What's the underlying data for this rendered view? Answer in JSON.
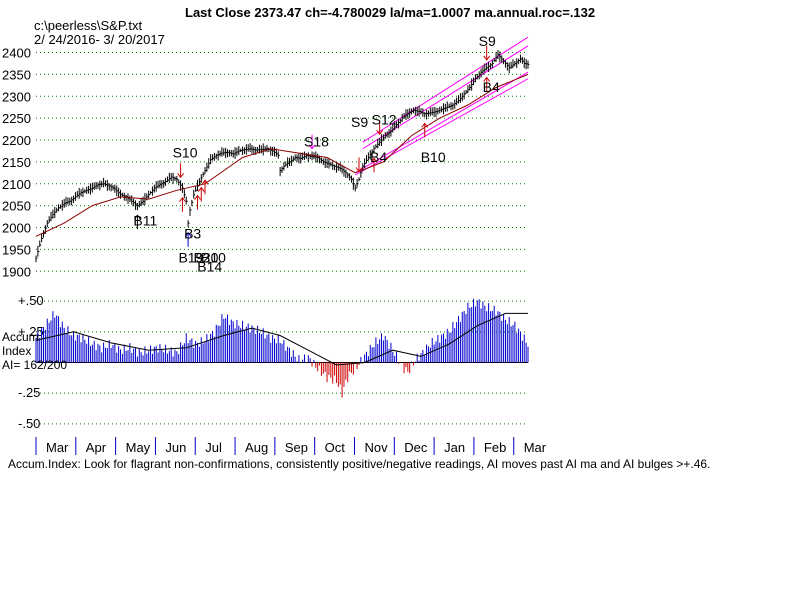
{
  "header": {
    "title": "Last Close 2373.47 ch=-4.780029  la/ma=1.0007 ma.annual.roc=.132",
    "file": "c:\\peerless\\S&P.txt",
    "range": "2/ 24/2016- 3/ 20/2017"
  },
  "accum_legend": {
    "line1": "Accum",
    "line2": "Index",
    "line3": "AI= 162/200"
  },
  "footer": "Accum.Index: Look for flagrant non-confirmations, consistently positive/negative readings, AI moves past AI ma and AI bulges >+.46.",
  "colors": {
    "bars": "#000000",
    "ma": "#8b0000",
    "channel": "#ff00ff",
    "accum_pos": "#0000cc",
    "accum_neg": "#cc0000",
    "signal_red": "#cc0000",
    "signal_blue": "#0000cc",
    "signal_magenta": "#ff00ff",
    "grid": "#008000"
  },
  "chart_data": [
    {
      "type": "bar",
      "subtype": "ohlc-price",
      "ylim": [
        1880,
        2440
      ],
      "yticks": [
        "2400",
        "2350",
        "2300",
        "2250",
        "2200",
        "2150",
        "2100",
        "2050",
        "2000",
        "1950",
        "1900"
      ],
      "x_months": [
        "Mar",
        "Apr",
        "May",
        "Jun",
        "Jul",
        "Aug",
        "Sep",
        "Oct",
        "Nov",
        "Dec",
        "Jan",
        "Feb",
        "Mar"
      ],
      "grid": true,
      "close_path": [
        [
          0,
          1930
        ],
        [
          3,
          1975
        ],
        [
          6,
          2010
        ],
        [
          9,
          2030
        ],
        [
          12,
          2045
        ],
        [
          15,
          2055
        ],
        [
          18,
          2060
        ],
        [
          21,
          2070
        ],
        [
          24,
          2080
        ],
        [
          27,
          2085
        ],
        [
          30,
          2090
        ],
        [
          33,
          2098
        ],
        [
          36,
          2100
        ],
        [
          39,
          2095
        ],
        [
          42,
          2088
        ],
        [
          45,
          2075
        ],
        [
          48,
          2070
        ],
        [
          51,
          2060
        ],
        [
          54,
          2050
        ],
        [
          57,
          2060
        ],
        [
          60,
          2075
        ],
        [
          63,
          2090
        ],
        [
          66,
          2098
        ],
        [
          69,
          2105
        ],
        [
          72,
          2115
        ],
        [
          75,
          2110
        ],
        [
          78,
          2090
        ],
        [
          80,
          2060
        ],
        [
          81,
          2010
        ],
        [
          82,
          2040
        ],
        [
          84,
          2075
        ],
        [
          87,
          2105
        ],
        [
          90,
          2130
        ],
        [
          93,
          2155
        ],
        [
          96,
          2165
        ],
        [
          99,
          2170
        ],
        [
          102,
          2172
        ],
        [
          105,
          2168
        ],
        [
          108,
          2175
        ],
        [
          111,
          2178
        ],
        [
          114,
          2180
        ],
        [
          117,
          2177
        ],
        [
          120,
          2178
        ],
        [
          123,
          2180
        ],
        [
          126,
          2175
        ],
        [
          129,
          2165
        ],
        [
          130,
          2130
        ],
        [
          132,
          2140
        ],
        [
          135,
          2150
        ],
        [
          138,
          2160
        ],
        [
          141,
          2158
        ],
        [
          144,
          2165
        ],
        [
          147,
          2162
        ],
        [
          150,
          2160
        ],
        [
          153,
          2150
        ],
        [
          156,
          2145
        ],
        [
          159,
          2140
        ],
        [
          162,
          2135
        ],
        [
          165,
          2125
        ],
        [
          168,
          2110
        ],
        [
          170,
          2090
        ],
        [
          172,
          2110
        ],
        [
          174,
          2140
        ],
        [
          177,
          2160
        ],
        [
          180,
          2180
        ],
        [
          183,
          2195
        ],
        [
          186,
          2210
        ],
        [
          189,
          2220
        ],
        [
          192,
          2235
        ],
        [
          195,
          2250
        ],
        [
          198,
          2260
        ],
        [
          201,
          2268
        ],
        [
          204,
          2265
        ],
        [
          207,
          2260
        ],
        [
          210,
          2262
        ],
        [
          213,
          2265
        ],
        [
          216,
          2270
        ],
        [
          219,
          2275
        ],
        [
          222,
          2280
        ],
        [
          225,
          2290
        ],
        [
          228,
          2305
        ],
        [
          231,
          2320
        ],
        [
          234,
          2340
        ],
        [
          237,
          2355
        ],
        [
          240,
          2365
        ],
        [
          243,
          2375
        ],
        [
          246,
          2395
        ],
        [
          249,
          2380
        ],
        [
          252,
          2365
        ],
        [
          255,
          2375
        ],
        [
          258,
          2385
        ],
        [
          260,
          2375
        ],
        [
          262,
          2373
        ]
      ],
      "ma_path": [
        [
          0,
          1980
        ],
        [
          15,
          2010
        ],
        [
          30,
          2050
        ],
        [
          45,
          2070
        ],
        [
          60,
          2065
        ],
        [
          75,
          2085
        ],
        [
          90,
          2100
        ],
        [
          100,
          2130
        ],
        [
          110,
          2160
        ],
        [
          125,
          2180
        ],
        [
          140,
          2170
        ],
        [
          155,
          2160
        ],
        [
          170,
          2125
        ],
        [
          185,
          2150
        ],
        [
          200,
          2210
        ],
        [
          215,
          2250
        ],
        [
          230,
          2280
        ],
        [
          245,
          2320
        ],
        [
          262,
          2350
        ]
      ],
      "signals": [
        {
          "label": "S9",
          "x": 240,
          "kind": "sell",
          "color": "red",
          "text_above": true,
          "y": 2415
        },
        {
          "label": "S10",
          "x": 77,
          "kind": "sell",
          "color": "red",
          "text_above": true,
          "y": 2160
        },
        {
          "label": "S18",
          "x": 147,
          "kind": "sell",
          "color": "magenta",
          "text_above": true,
          "y": 2185
        },
        {
          "label": "S9",
          "x": 172,
          "kind": "sell",
          "color": "red",
          "text_above": true,
          "y": 2230
        },
        {
          "label": "S12",
          "x": 183,
          "kind": "sell",
          "color": "red",
          "text_above": true,
          "y": 2235
        },
        {
          "label": "B4",
          "x": 240,
          "kind": "buy",
          "color": "red",
          "text_above": false,
          "y": 2310
        },
        {
          "label": "B10",
          "x": 207,
          "kind": "buy",
          "color": "red",
          "text_above": false,
          "y": 2150
        },
        {
          "label": "B4",
          "x": 180,
          "kind": "buy",
          "color": "red",
          "text_above": false,
          "y": 2150
        },
        {
          "label": "B11",
          "x": 54,
          "kind": "buy",
          "color": "black",
          "text_above": false,
          "y": 2005
        },
        {
          "label": "B3",
          "x": 81,
          "kind": "buy",
          "color": "blue",
          "text_above": false,
          "y": 1975
        },
        {
          "label": "B19",
          "x": 78,
          "kind": "buy",
          "color": "red",
          "text_above": false,
          "y": 1920
        },
        {
          "label": "B20",
          "x": 86,
          "kind": "buy",
          "color": "red",
          "text_above": false,
          "y": 1920
        },
        {
          "label": "B10",
          "x": 90,
          "kind": "buy",
          "color": "red",
          "text_above": false,
          "y": 1920
        },
        {
          "label": "B14",
          "x": 88,
          "kind": "buy",
          "color": "red",
          "text_above": false,
          "y": 1900
        }
      ]
    },
    {
      "type": "bar",
      "subtype": "accumulation-index",
      "ylim": [
        -0.55,
        0.55
      ],
      "yticks": [
        "+.50",
        "+.25",
        "-.25",
        "-.50"
      ],
      "grid": true,
      "accum_path": [
        [
          0,
          0.2
        ],
        [
          5,
          0.3
        ],
        [
          10,
          0.4
        ],
        [
          15,
          0.28
        ],
        [
          20,
          0.22
        ],
        [
          25,
          0.2
        ],
        [
          30,
          0.15
        ],
        [
          35,
          0.12
        ],
        [
          40,
          0.15
        ],
        [
          45,
          0.1
        ],
        [
          50,
          0.12
        ],
        [
          55,
          0.08
        ],
        [
          60,
          0.1
        ],
        [
          65,
          0.12
        ],
        [
          70,
          0.1
        ],
        [
          75,
          0.08
        ],
        [
          80,
          0.2
        ],
        [
          85,
          0.15
        ],
        [
          90,
          0.18
        ],
        [
          95,
          0.25
        ],
        [
          100,
          0.38
        ],
        [
          105,
          0.32
        ],
        [
          110,
          0.3
        ],
        [
          115,
          0.28
        ],
        [
          120,
          0.25
        ],
        [
          125,
          0.2
        ],
        [
          130,
          0.18
        ],
        [
          135,
          0.1
        ],
        [
          140,
          0.02
        ],
        [
          145,
          0.04
        ],
        [
          150,
          -0.05
        ],
        [
          155,
          -0.12
        ],
        [
          160,
          -0.15
        ],
        [
          163,
          -0.25
        ],
        [
          166,
          -0.12
        ],
        [
          170,
          -0.05
        ],
        [
          175,
          0.05
        ],
        [
          180,
          0.15
        ],
        [
          185,
          0.22
        ],
        [
          190,
          0.1
        ],
        [
          195,
          -0.03
        ],
        [
          198,
          -0.08
        ],
        [
          202,
          0.02
        ],
        [
          206,
          0.08
        ],
        [
          210,
          0.15
        ],
        [
          215,
          0.2
        ],
        [
          220,
          0.25
        ],
        [
          225,
          0.35
        ],
        [
          230,
          0.45
        ],
        [
          235,
          0.5
        ],
        [
          240,
          0.45
        ],
        [
          245,
          0.42
        ],
        [
          250,
          0.35
        ],
        [
          255,
          0.3
        ],
        [
          262,
          0.15
        ]
      ],
      "accum_ma_path": [
        [
          0,
          0.18
        ],
        [
          20,
          0.25
        ],
        [
          40,
          0.16
        ],
        [
          60,
          0.1
        ],
        [
          80,
          0.12
        ],
        [
          100,
          0.22
        ],
        [
          115,
          0.28
        ],
        [
          130,
          0.22
        ],
        [
          145,
          0.1
        ],
        [
          160,
          -0.02
        ],
        [
          175,
          0.0
        ],
        [
          190,
          0.1
        ],
        [
          205,
          0.05
        ],
        [
          220,
          0.15
        ],
        [
          235,
          0.3
        ],
        [
          250,
          0.4
        ],
        [
          262,
          0.4
        ]
      ]
    }
  ]
}
